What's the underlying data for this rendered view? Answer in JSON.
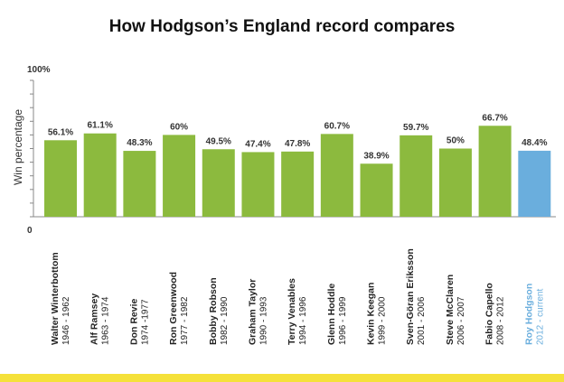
{
  "colors": {
    "bar": "#8cba3e",
    "highlight_bar": "#6aaedd",
    "highlight_text": "#6aaedd",
    "text": "#222222",
    "axis": "#888888",
    "footer": "#f5e13a"
  },
  "chart_data": {
    "type": "bar",
    "title": "How Hodgson’s England record compares",
    "ylabel": "Win percentage",
    "xlabel": "",
    "ylim": [
      0,
      100
    ],
    "y_tick_labels": [
      "0",
      "100%"
    ],
    "grid": false,
    "categories": [
      {
        "name": "Walter Winterbottom",
        "years": "1946 - 1962",
        "value": 56.1,
        "label": "56.1%",
        "highlight": false
      },
      {
        "name": "Alf Ramsey",
        "years": "1963 - 1974",
        "value": 61.1,
        "label": "61.1%",
        "highlight": false
      },
      {
        "name": "Don Revie",
        "years": "1974 -1977",
        "value": 48.3,
        "label": "48.3%",
        "highlight": false
      },
      {
        "name": "Ron Greenwood",
        "years": "1977 - 1982",
        "value": 60,
        "label": "60%",
        "highlight": false
      },
      {
        "name": "Bobby Robson",
        "years": "1982 - 1990",
        "value": 49.5,
        "label": "49.5%",
        "highlight": false
      },
      {
        "name": "Graham Taylor",
        "years": "1990 - 1993",
        "value": 47.4,
        "label": "47.4%",
        "highlight": false
      },
      {
        "name": "Terry Venables",
        "years": "1994 - 1996",
        "value": 47.8,
        "label": "47.8%",
        "highlight": false
      },
      {
        "name": "Glenn Hoddle",
        "years": "1996 - 1999",
        "value": 60.7,
        "label": "60.7%",
        "highlight": false
      },
      {
        "name": "Kevin Keegan",
        "years": "1999 - 2000",
        "value": 38.9,
        "label": "38.9%",
        "highlight": false
      },
      {
        "name": "Sven-Göran Eriksson",
        "years": "2001 - 2006",
        "value": 59.7,
        "label": "59.7%",
        "highlight": false
      },
      {
        "name": "Steve McClaren",
        "years": "2006 - 2007",
        "value": 50,
        "label": "50%",
        "highlight": false
      },
      {
        "name": "Fabio Capello",
        "years": "2008 - 2012",
        "value": 66.7,
        "label": "66.7%",
        "highlight": false
      },
      {
        "name": "Roy Hodgson",
        "years": "2012 - current",
        "value": 48.4,
        "label": "48.4%",
        "highlight": true
      }
    ]
  }
}
